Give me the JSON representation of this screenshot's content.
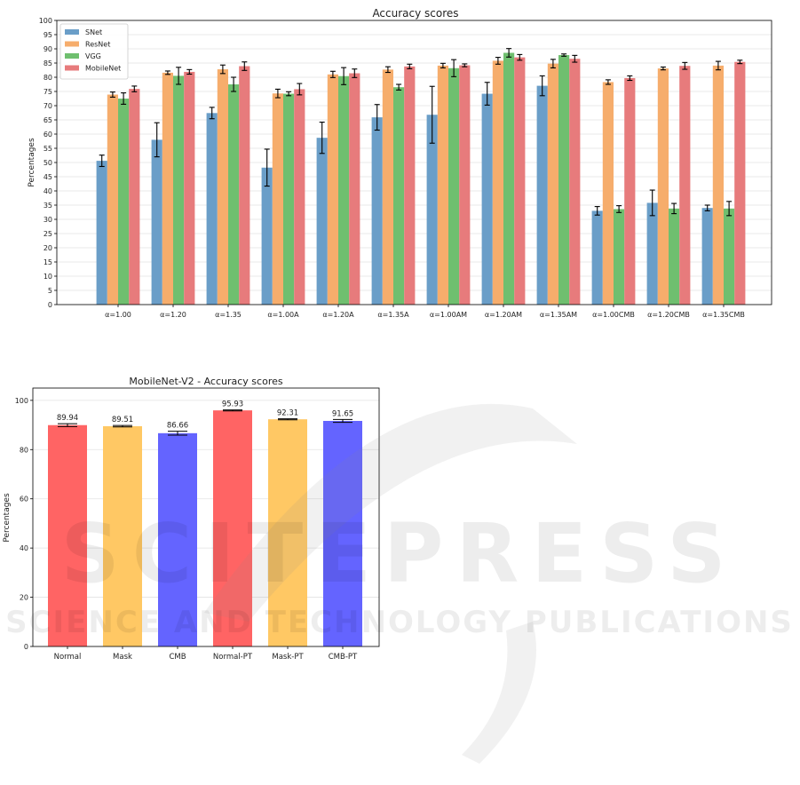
{
  "chart_data": [
    {
      "type": "bar",
      "title": "Accuracy scores",
      "xlabel": "",
      "ylabel": "Percentages",
      "ylim": [
        0,
        100
      ],
      "yticks": [
        0,
        5,
        10,
        15,
        20,
        25,
        30,
        35,
        40,
        45,
        50,
        55,
        60,
        65,
        70,
        75,
        80,
        85,
        90,
        95,
        100
      ],
      "grid": true,
      "legend_position": "top-left",
      "categories": [
        "α=1.00",
        "α=1.20",
        "α=1.35",
        "α=1.00A",
        "α=1.20A",
        "α=1.35A",
        "α=1.00AM",
        "α=1.20AM",
        "α=1.35AM",
        "α=1.00CMB",
        "α=1.20CMB",
        "α=1.35CMB"
      ],
      "series": [
        {
          "name": "SNet",
          "color": "#6a9ec8",
          "values": [
            50.6,
            58.0,
            67.4,
            48.2,
            58.7,
            65.9,
            66.8,
            74.2,
            77.0,
            33.0,
            35.8,
            34.0
          ],
          "errors": [
            2.0,
            6.0,
            2.0,
            6.5,
            5.5,
            4.5,
            10.0,
            4.0,
            3.5,
            1.5,
            4.5,
            1.0
          ]
        },
        {
          "name": "ResNet",
          "color": "#f6ad6c",
          "values": [
            73.9,
            81.6,
            82.8,
            74.3,
            81.0,
            82.7,
            84.1,
            85.8,
            84.8,
            78.3,
            83.1,
            84.1
          ],
          "errors": [
            0.9,
            0.6,
            1.5,
            1.5,
            1.1,
            1.0,
            0.8,
            1.2,
            1.5,
            0.8,
            0.5,
            1.5
          ]
        },
        {
          "name": "VGG",
          "color": "#6fbf6f",
          "values": [
            72.5,
            80.5,
            77.5,
            74.2,
            80.4,
            76.5,
            83.2,
            88.6,
            87.8,
            33.6,
            33.8,
            33.8
          ],
          "errors": [
            2.0,
            3.0,
            2.5,
            0.7,
            3.0,
            1.0,
            3.0,
            1.5,
            0.4,
            1.2,
            1.8,
            2.5
          ]
        },
        {
          "name": "MobileNet",
          "color": "#e77b7c",
          "values": [
            75.9,
            81.9,
            83.9,
            75.8,
            81.4,
            83.8,
            84.2,
            87.0,
            86.5,
            79.7,
            84.0,
            85.4
          ],
          "errors": [
            1.0,
            0.8,
            1.5,
            2.0,
            1.5,
            0.8,
            0.5,
            1.0,
            1.2,
            0.8,
            1.2,
            0.6
          ]
        }
      ]
    },
    {
      "type": "bar",
      "title": "MobileNet-V2 - Accuracy scores",
      "xlabel": "",
      "ylabel": "Percentages",
      "ylim": [
        0,
        105
      ],
      "yticks": [
        0,
        20,
        40,
        60,
        80,
        100
      ],
      "grid": true,
      "categories": [
        "Normal",
        "Mask",
        "CMB",
        "Normal-PT",
        "Mask-PT",
        "CMB-PT"
      ],
      "values": [
        89.94,
        89.51,
        86.66,
        95.93,
        92.31,
        91.65
      ],
      "value_labels": [
        "89.94",
        "89.51",
        "86.66",
        "95.93",
        "92.31",
        "91.65"
      ],
      "errors": [
        0.6,
        0.3,
        0.8,
        0.2,
        0.2,
        0.6
      ],
      "colors": [
        "#ff6464",
        "#ffc864",
        "#6464ff",
        "#ff6464",
        "#ffc864",
        "#6464ff"
      ]
    }
  ],
  "watermark": {
    "line1": "SCITEPRESS",
    "line2": "SCIENCE AND TECHNOLOGY PUBLICATIONS"
  }
}
